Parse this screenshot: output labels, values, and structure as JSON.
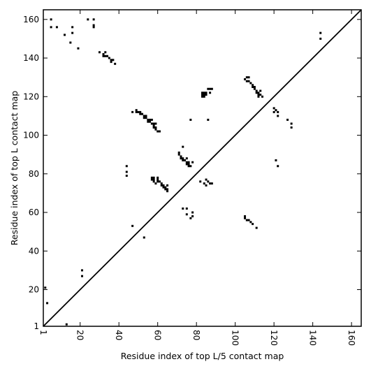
{
  "chart_data": {
    "type": "scatter",
    "xlabel": "Residue index of top L/5 contact map",
    "ylabel": "Residue index of top L contact map",
    "xlim": [
      1,
      165
    ],
    "ylim": [
      1,
      165
    ],
    "xticks": [
      1,
      20,
      40,
      60,
      80,
      100,
      120,
      140,
      160
    ],
    "yticks": [
      1,
      20,
      40,
      60,
      80,
      100,
      120,
      140,
      160
    ],
    "diagonal": true,
    "marker": "square",
    "marker_color": "#000000",
    "points": [
      [
        5,
        160
      ],
      [
        5,
        156
      ],
      [
        8,
        156
      ],
      [
        12,
        152
      ],
      [
        15,
        148
      ],
      [
        16,
        156
      ],
      [
        16,
        153
      ],
      [
        19,
        145
      ],
      [
        24,
        160
      ],
      [
        27,
        160
      ],
      [
        27,
        157
      ],
      [
        27,
        156
      ],
      [
        30,
        143
      ],
      [
        32,
        142
      ],
      [
        32,
        141
      ],
      [
        33,
        143
      ],
      [
        33,
        141
      ],
      [
        34,
        141
      ],
      [
        35,
        140
      ],
      [
        36,
        139
      ],
      [
        36,
        138
      ],
      [
        37,
        139
      ],
      [
        38,
        137
      ],
      [
        44,
        84
      ],
      [
        44,
        81
      ],
      [
        44,
        79
      ],
      [
        47,
        112
      ],
      [
        47,
        53
      ],
      [
        49,
        113
      ],
      [
        49,
        112
      ],
      [
        50,
        112
      ],
      [
        51,
        112
      ],
      [
        51,
        111
      ],
      [
        52,
        111
      ],
      [
        53,
        110
      ],
      [
        53,
        109
      ],
      [
        54,
        110
      ],
      [
        54,
        109
      ],
      [
        55,
        108
      ],
      [
        55,
        107
      ],
      [
        56,
        108
      ],
      [
        56,
        107
      ],
      [
        57,
        108
      ],
      [
        57,
        106
      ],
      [
        58,
        106
      ],
      [
        58,
        105
      ],
      [
        58,
        104
      ],
      [
        59,
        106
      ],
      [
        59,
        104
      ],
      [
        59,
        103
      ],
      [
        60,
        102
      ],
      [
        61,
        102
      ],
      [
        53,
        47
      ],
      [
        57,
        78
      ],
      [
        57,
        77
      ],
      [
        58,
        78
      ],
      [
        58,
        77
      ],
      [
        58,
        76
      ],
      [
        59,
        75
      ],
      [
        60,
        78
      ],
      [
        60,
        77
      ],
      [
        60,
        76
      ],
      [
        61,
        76
      ],
      [
        62,
        75
      ],
      [
        62,
        74
      ],
      [
        63,
        74
      ],
      [
        63,
        73
      ],
      [
        64,
        73
      ],
      [
        64,
        72
      ],
      [
        65,
        72
      ],
      [
        65,
        71
      ],
      [
        65,
        74
      ],
      [
        71,
        91
      ],
      [
        71,
        90
      ],
      [
        72,
        89
      ],
      [
        72,
        88
      ],
      [
        73,
        88
      ],
      [
        73,
        87
      ],
      [
        73,
        94
      ],
      [
        74,
        87
      ],
      [
        75,
        88
      ],
      [
        75,
        86
      ],
      [
        75,
        85
      ],
      [
        76,
        86
      ],
      [
        76,
        85
      ],
      [
        76,
        84
      ],
      [
        77,
        84
      ],
      [
        77,
        108
      ],
      [
        78,
        86
      ],
      [
        73,
        62
      ],
      [
        75,
        62
      ],
      [
        75,
        59
      ],
      [
        77,
        57
      ],
      [
        78,
        60
      ],
      [
        78,
        58
      ],
      [
        82,
        76
      ],
      [
        84,
        75
      ],
      [
        85,
        77
      ],
      [
        85,
        74
      ],
      [
        86,
        76
      ],
      [
        86,
        108
      ],
      [
        87,
        75
      ],
      [
        88,
        75
      ],
      [
        83,
        122
      ],
      [
        83,
        121
      ],
      [
        83,
        120
      ],
      [
        84,
        122
      ],
      [
        84,
        121
      ],
      [
        84,
        120
      ],
      [
        85,
        122
      ],
      [
        85,
        121
      ],
      [
        86,
        124
      ],
      [
        87,
        124
      ],
      [
        87,
        122
      ],
      [
        88,
        124
      ],
      [
        105,
        129
      ],
      [
        106,
        130
      ],
      [
        106,
        128
      ],
      [
        107,
        130
      ],
      [
        107,
        128
      ],
      [
        108,
        127
      ],
      [
        109,
        126
      ],
      [
        109,
        125
      ],
      [
        110,
        125
      ],
      [
        110,
        124
      ],
      [
        111,
        123
      ],
      [
        111,
        122
      ],
      [
        112,
        122
      ],
      [
        112,
        121
      ],
      [
        112,
        120
      ],
      [
        113,
        123
      ],
      [
        113,
        121
      ],
      [
        114,
        120
      ],
      [
        105,
        58
      ],
      [
        105,
        57
      ],
      [
        106,
        56
      ],
      [
        107,
        56
      ],
      [
        108,
        55
      ],
      [
        109,
        54
      ],
      [
        111,
        52
      ],
      [
        120,
        114
      ],
      [
        120,
        112
      ],
      [
        121,
        113
      ],
      [
        121,
        87
      ],
      [
        122,
        112
      ],
      [
        122,
        110
      ],
      [
        122,
        84
      ],
      [
        127,
        108
      ],
      [
        129,
        106
      ],
      [
        129,
        104
      ],
      [
        144,
        153
      ],
      [
        144,
        150
      ],
      [
        2,
        21
      ],
      [
        3,
        13
      ],
      [
        13,
        2
      ],
      [
        21,
        30
      ],
      [
        21,
        27
      ]
    ]
  }
}
